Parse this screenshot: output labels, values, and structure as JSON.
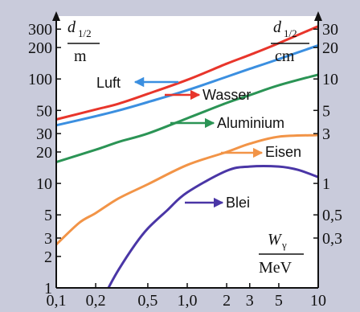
{
  "chart_data": {
    "type": "line",
    "x_scale": "log",
    "y_scale": "log",
    "grid": false,
    "xlim": [
      0.1,
      10
    ],
    "ylim_left": [
      1,
      400
    ],
    "ylim_right_cm": [
      0.1,
      40
    ],
    "x_ticks": [
      {
        "v": 0.1,
        "label": "0,1"
      },
      {
        "v": 0.2,
        "label": "0,2"
      },
      {
        "v": 0.5,
        "label": "0,5"
      },
      {
        "v": 1,
        "label": "1,0"
      },
      {
        "v": 2,
        "label": "2"
      },
      {
        "v": 3,
        "label": "3"
      },
      {
        "v": 5,
        "label": "5"
      },
      {
        "v": 10,
        "label": "10"
      }
    ],
    "y_ticks_left": [
      {
        "v": 1,
        "label": "1"
      },
      {
        "v": 2,
        "label": "2"
      },
      {
        "v": 3,
        "label": "3"
      },
      {
        "v": 5,
        "label": "5"
      },
      {
        "v": 10,
        "label": "10"
      },
      {
        "v": 20,
        "label": "20"
      },
      {
        "v": 30,
        "label": "30"
      },
      {
        "v": 50,
        "label": "50"
      },
      {
        "v": 100,
        "label": "100"
      },
      {
        "v": 200,
        "label": "200"
      },
      {
        "v": 300,
        "label": "300"
      }
    ],
    "y_ticks_right": [
      {
        "v": 0.3,
        "label": "0,3"
      },
      {
        "v": 0.5,
        "label": "0,5"
      },
      {
        "v": 1,
        "label": "1"
      },
      {
        "v": 3,
        "label": "3"
      },
      {
        "v": 5,
        "label": "5"
      },
      {
        "v": 10,
        "label": "10"
      },
      {
        "v": 20,
        "label": "20"
      },
      {
        "v": 30,
        "label": "30"
      }
    ],
    "left_axis": {
      "var": "d",
      "sub": "1/2",
      "unit": "m"
    },
    "right_axis": {
      "var": "d",
      "sub": "1/2",
      "unit": "cm"
    },
    "x_axis": {
      "var": "W",
      "sub": "γ",
      "unit": "MeV"
    },
    "series": [
      {
        "name": "Luft",
        "color": "#3b8fe0",
        "axis": "left_m",
        "x": [
          0.1,
          0.2,
          0.3,
          0.5,
          1,
          2,
          3,
          5,
          10
        ],
        "y": [
          36,
          44,
          50,
          60,
          78,
          105,
          125,
          155,
          210
        ]
      },
      {
        "name": "Wasser",
        "color": "#e8352b",
        "axis": "right_cm",
        "x": [
          0.1,
          0.2,
          0.3,
          0.5,
          1,
          2,
          3,
          5,
          10
        ],
        "y": [
          4.1,
          5.1,
          5.8,
          7.2,
          9.8,
          14,
          17,
          22,
          32
        ]
      },
      {
        "name": "Aluminium",
        "color": "#2b9455",
        "axis": "right_cm",
        "x": [
          0.1,
          0.2,
          0.3,
          0.5,
          1,
          2,
          3,
          5,
          10
        ],
        "y": [
          1.6,
          2.1,
          2.5,
          3.0,
          4.2,
          5.9,
          7.0,
          8.7,
          11
        ]
      },
      {
        "name": "Eisen",
        "color": "#f29447",
        "axis": "right_cm",
        "x": [
          0.1,
          0.15,
          0.2,
          0.3,
          0.5,
          1,
          2,
          3,
          5,
          10
        ],
        "y": [
          0.26,
          0.42,
          0.52,
          0.72,
          0.98,
          1.5,
          2.0,
          2.4,
          2.8,
          2.9
        ]
      },
      {
        "name": "Blei",
        "color": "#4a36a6",
        "axis": "right_cm",
        "x": [
          0.25,
          0.3,
          0.4,
          0.5,
          0.7,
          1,
          2,
          3,
          5,
          7,
          10
        ],
        "y": [
          0.1,
          0.15,
          0.26,
          0.37,
          0.55,
          0.82,
          1.32,
          1.45,
          1.45,
          1.35,
          1.15
        ]
      }
    ]
  }
}
